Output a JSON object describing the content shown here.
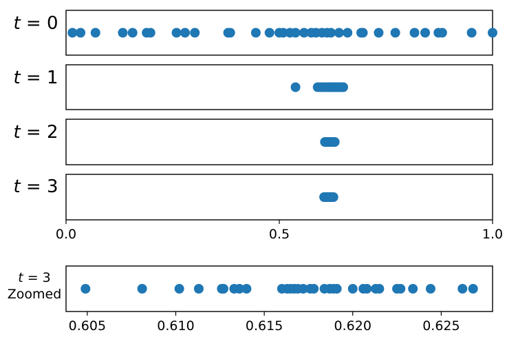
{
  "chart_data": [
    {
      "type": "scatter",
      "label": "t = 0",
      "xlim": [
        0.0,
        1.0
      ],
      "xticks": [],
      "color": "#1f77b4",
      "x": [
        0.015,
        0.034,
        0.069,
        0.133,
        0.156,
        0.189,
        0.198,
        0.259,
        0.279,
        0.302,
        0.38,
        0.385,
        0.445,
        0.477,
        0.5,
        0.509,
        0.525,
        0.538,
        0.558,
        0.575,
        0.586,
        0.6,
        0.612,
        0.621,
        0.64,
        0.66,
        0.692,
        0.696,
        0.733,
        0.772,
        0.817,
        0.842,
        0.873,
        0.882,
        0.951,
        1.0
      ]
    },
    {
      "type": "scatter",
      "label": "t = 1",
      "xlim": [
        0.0,
        1.0
      ],
      "xticks": [],
      "color": "#1f77b4",
      "x": [
        0.538,
        0.59,
        0.596,
        0.602,
        0.608,
        0.614,
        0.618,
        0.622,
        0.626,
        0.63,
        0.634,
        0.638,
        0.642,
        0.646,
        0.65
      ]
    },
    {
      "type": "scatter",
      "label": "t = 2",
      "xlim": [
        0.0,
        1.0
      ],
      "xticks": [],
      "color": "#1f77b4",
      "x": [
        0.607,
        0.61,
        0.613,
        0.616,
        0.618,
        0.62,
        0.622,
        0.624,
        0.626,
        0.628,
        0.63
      ]
    },
    {
      "type": "scatter",
      "label": "t = 3",
      "xlim": [
        0.0,
        1.0
      ],
      "xticks": [
        0.0,
        0.5,
        1.0
      ],
      "xticklabels": [
        "0.0",
        "0.5",
        "1.0"
      ],
      "color": "#1f77b4",
      "x": [
        0.605,
        0.608,
        0.611,
        0.614,
        0.617,
        0.619,
        0.621,
        0.623,
        0.625,
        0.627
      ]
    },
    {
      "type": "scatter",
      "label": "t = 3\nZoomed",
      "xlim": [
        0.6038,
        0.6279
      ],
      "xticks": [
        0.605,
        0.61,
        0.615,
        0.62,
        0.625
      ],
      "xticklabels": [
        "0.605",
        "0.610",
        "0.615",
        "0.620",
        "0.625"
      ],
      "color": "#1f77b4",
      "x": [
        0.6049,
        0.6081,
        0.6102,
        0.6113,
        0.6126,
        0.6127,
        0.6133,
        0.6136,
        0.614,
        0.616,
        0.6163,
        0.6165,
        0.6167,
        0.6169,
        0.6172,
        0.6176,
        0.6178,
        0.6184,
        0.6187,
        0.6189,
        0.6191,
        0.62,
        0.6206,
        0.6208,
        0.6213,
        0.6215,
        0.6225,
        0.6227,
        0.6234,
        0.6244,
        0.6262,
        0.6268
      ]
    }
  ]
}
